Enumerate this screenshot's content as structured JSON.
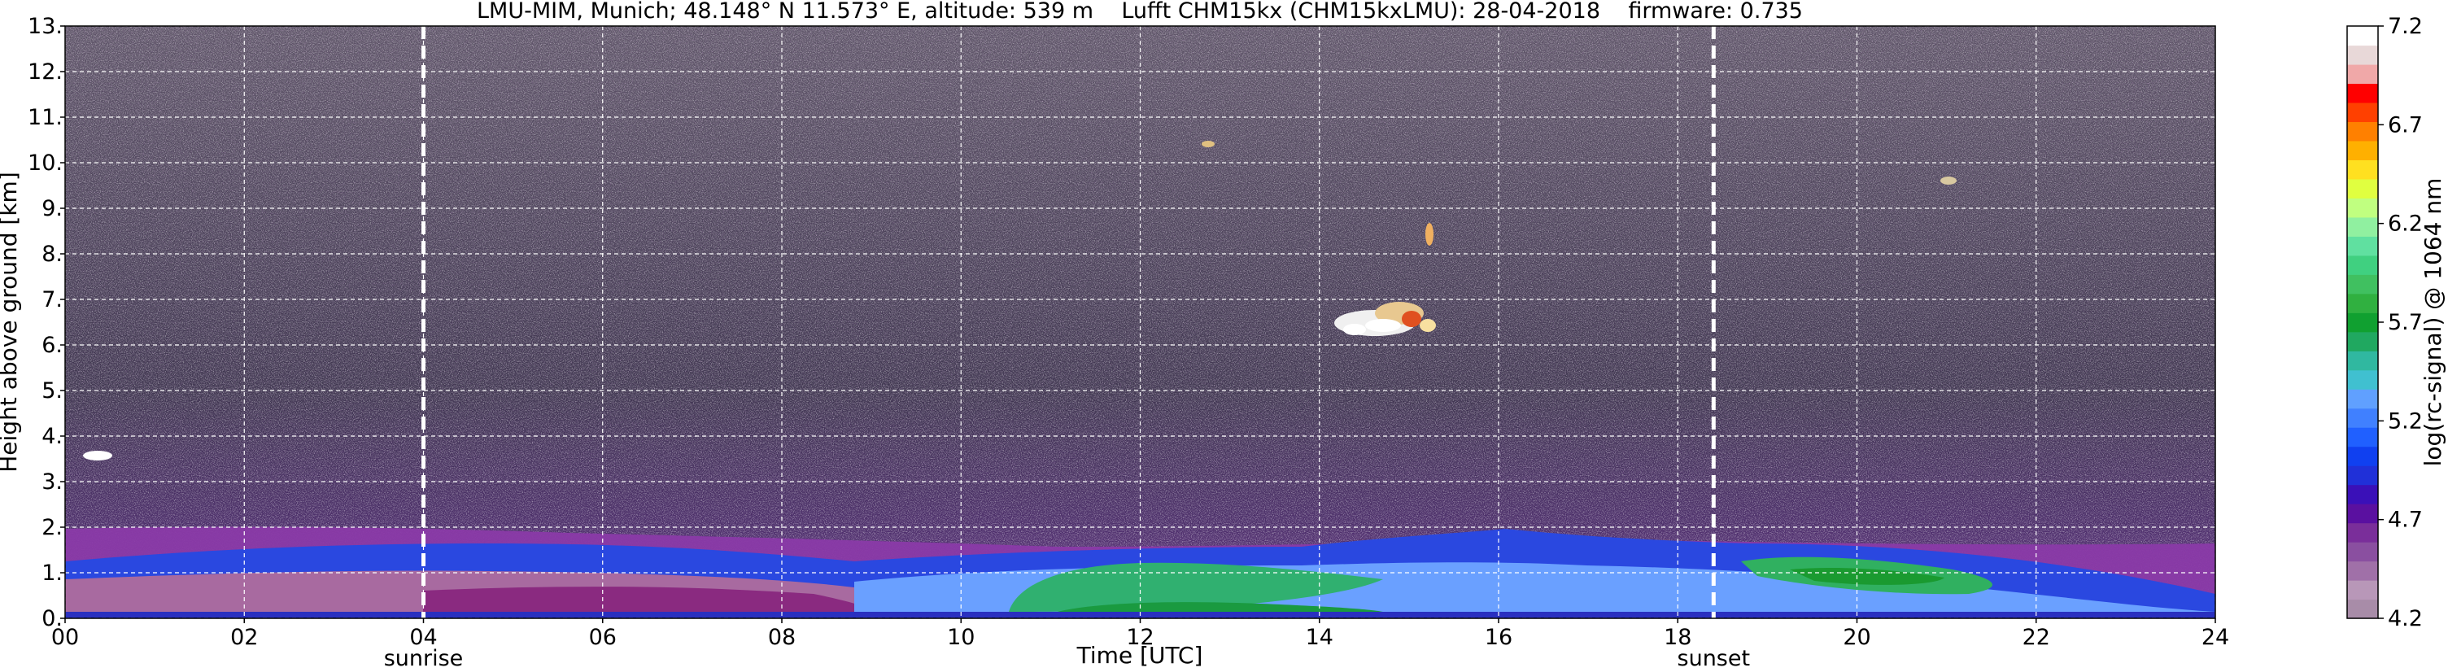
{
  "chart_data": {
    "type": "heatmap",
    "title": "LMU-MIM, Munich; 48.148° N 11.573° E, altitude: 539 m    Lufft CHM15kx (CHM15kxLMU): 28-04-2018    firmware: 0.735",
    "xlabel": "Time [UTC]",
    "ylabel": "Height above ground [km]",
    "xlim": [
      0,
      24
    ],
    "ylim": [
      0,
      13
    ],
    "x_ticks": [
      "00",
      "02",
      "04",
      "06",
      "08",
      "10",
      "12",
      "14",
      "16",
      "18",
      "20",
      "22",
      "24"
    ],
    "y_ticks": [
      "0.",
      "1.",
      "2.",
      "3.",
      "4.",
      "5.",
      "6.",
      "7.",
      "8.",
      "9.",
      "10.",
      "11.",
      "12.",
      "13."
    ],
    "grid": true,
    "markers": [
      {
        "label": "sunrise",
        "x": 4.0
      },
      {
        "label": "sunset",
        "x": 18.4
      }
    ],
    "colorbar": {
      "label": "log(rc-signal) @ 1064 nm",
      "range": [
        4.2,
        7.2
      ],
      "ticks": [
        "4.2",
        "4.7",
        "5.2",
        "5.7",
        "6.2",
        "6.7",
        "7.2"
      ],
      "colors": [
        "#a88ca8",
        "#b897b8",
        "#a070a8",
        "#8a4fa0",
        "#7a2e9a",
        "#5a10a0",
        "#3a10b8",
        "#2030d8",
        "#1040f0",
        "#2060ff",
        "#4080ff",
        "#60a0ff",
        "#40c0d0",
        "#30b8a0",
        "#20a860",
        "#10a030",
        "#30b040",
        "#40c060",
        "#40d080",
        "#60e0a0",
        "#90f0a0",
        "#c0ff80",
        "#e0ff40",
        "#ffe020",
        "#ffb000",
        "#ff8000",
        "#ff4000",
        "#ff0000",
        "#f0a8a8",
        "#e8d8d8",
        "#ffffff"
      ]
    }
  }
}
